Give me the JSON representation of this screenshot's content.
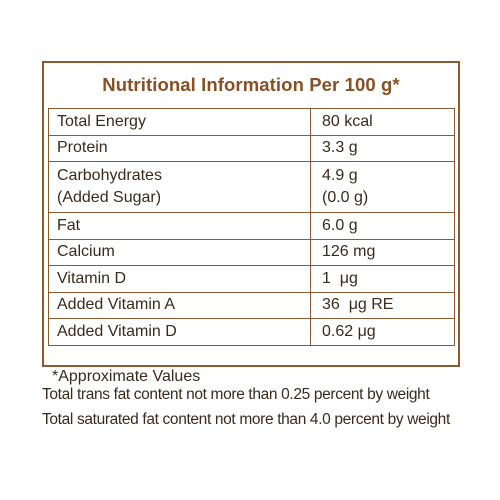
{
  "title": "Nutritional Information Per 100 g*",
  "rows": [
    {
      "nutrient": "Total Energy",
      "value": "80 kcal"
    },
    {
      "nutrient": "Protein",
      "value": "3.3 g"
    },
    {
      "nutrient": "Carbohydrates",
      "nutrient_sub": "(Added Sugar)",
      "value": "4.9 g",
      "value_sub": "(0.0 g)"
    },
    {
      "nutrient": "Fat",
      "value": "6.0 g"
    },
    {
      "nutrient": "Calcium",
      "value": "126 mg"
    },
    {
      "nutrient": "Vitamin D",
      "value": "1  μg"
    },
    {
      "nutrient": "Added Vitamin A",
      "value": "36  μg RE"
    },
    {
      "nutrient": "Added Vitamin D",
      "value": "0.62 μg"
    }
  ],
  "footnotes": {
    "approx": "*Approximate Values",
    "trans_fat": "Total trans fat content not more than 0.25 percent by weight",
    "saturated_fat": "Total saturated fat content not more than 4.0 percent by weight"
  }
}
